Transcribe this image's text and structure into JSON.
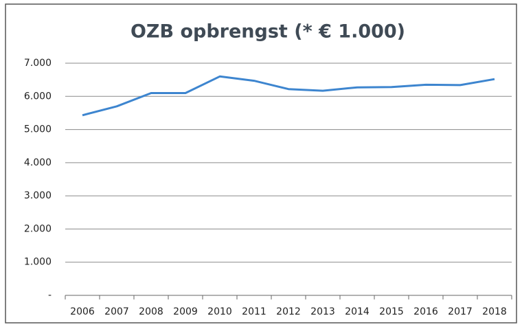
{
  "chart_data": {
    "type": "line",
    "title": "OZB opbrengst (* € 1.000)",
    "categories": [
      "2006",
      "2007",
      "2008",
      "2009",
      "2010",
      "2011",
      "2012",
      "2013",
      "2014",
      "2015",
      "2016",
      "2017",
      "2018"
    ],
    "series": [
      {
        "name": "OZB opbrengst",
        "color": "#3d85cf",
        "values": [
          5430,
          5700,
          6100,
          6100,
          6600,
          6470,
          6220,
          6170,
          6270,
          6280,
          6350,
          6340,
          6520
        ]
      }
    ],
    "ylim": [
      0,
      7000
    ],
    "yticks": [
      {
        "value": 0,
        "label": "-"
      },
      {
        "value": 1000,
        "label": "1.000"
      },
      {
        "value": 2000,
        "label": "2.000"
      },
      {
        "value": 3000,
        "label": "3.000"
      },
      {
        "value": 4000,
        "label": "4.000"
      },
      {
        "value": 5000,
        "label": "5.000"
      },
      {
        "value": 6000,
        "label": "6.000"
      },
      {
        "value": 7000,
        "label": "7.000"
      }
    ],
    "grid": true
  }
}
